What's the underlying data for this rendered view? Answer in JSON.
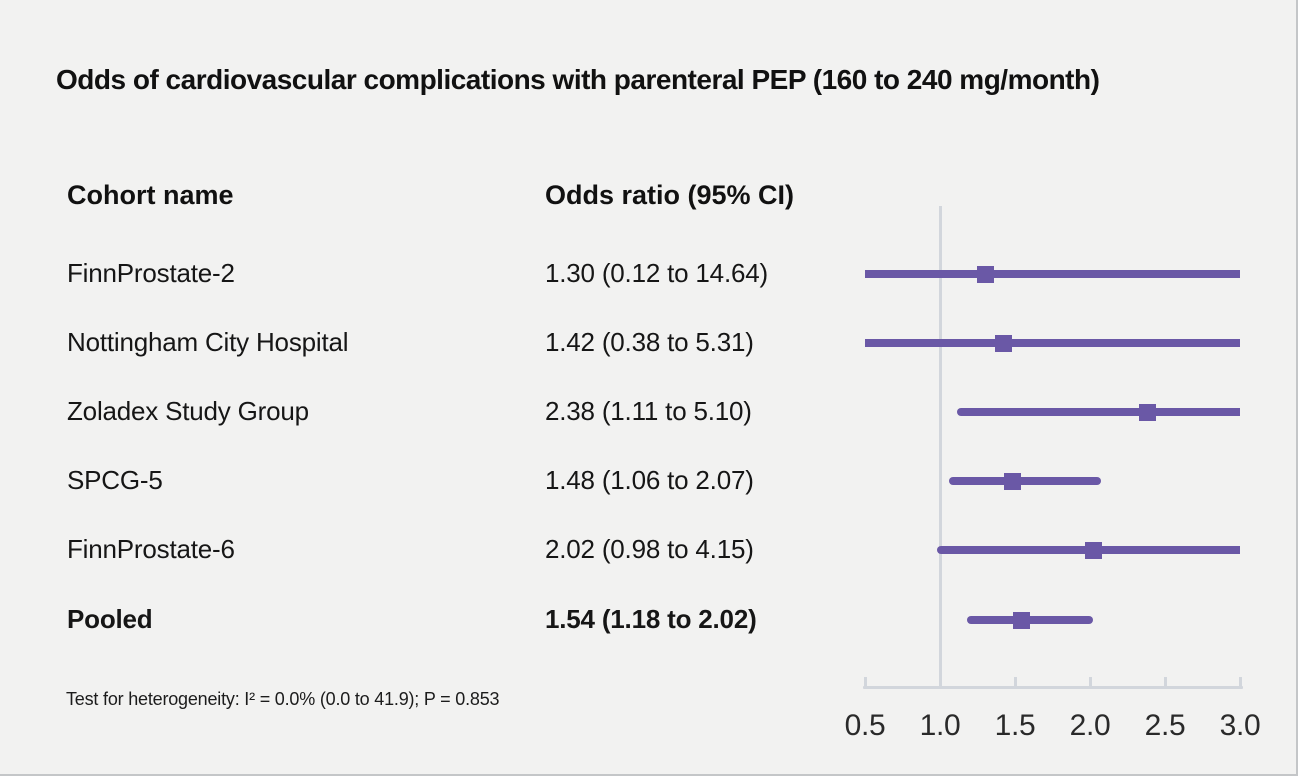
{
  "title": "Odds of cardiovascular complications with parenteral PEP (160 to 240 mg/month)",
  "table": {
    "cohort_header": "Cohort name",
    "or_header": "Odds ratio (95% CI)"
  },
  "footnote": "Test for heterogeneity: I² = 0.0% (0.0 to 41.9); P = 0.853",
  "chart_data": {
    "type": "forest",
    "title": "Odds of cardiovascular complications with parenteral PEP (160 to 240 mg/month)",
    "xlabel": "Odds ratio",
    "axis": {
      "min": 0.5,
      "max": 3.0,
      "tick_values": [
        0.5,
        1.0,
        1.5,
        2.0,
        2.5,
        3.0
      ],
      "tick_labels": [
        "0.5",
        "1.0",
        "1.5",
        "2.0",
        "2.5",
        "3.0"
      ],
      "reference_line": 1.0,
      "grid": false
    },
    "rows": [
      {
        "cohort": "FinnProstate-2",
        "or": 1.3,
        "ci_low": 0.12,
        "ci_high": 14.64,
        "or_text": "1.30 (0.12 to 14.64)",
        "pooled": false
      },
      {
        "cohort": "Nottingham City Hospital",
        "or": 1.42,
        "ci_low": 0.38,
        "ci_high": 5.31,
        "or_text": "1.42 (0.38 to 5.31)",
        "pooled": false
      },
      {
        "cohort": "Zoladex Study Group",
        "or": 2.38,
        "ci_low": 1.11,
        "ci_high": 5.1,
        "or_text": "2.38 (1.11 to 5.10)",
        "pooled": false
      },
      {
        "cohort": "SPCG-5",
        "or": 1.48,
        "ci_low": 1.06,
        "ci_high": 2.07,
        "or_text": "1.48 (1.06 to 2.07)",
        "pooled": false
      },
      {
        "cohort": "FinnProstate-6",
        "or": 2.02,
        "ci_low": 0.98,
        "ci_high": 4.15,
        "or_text": "2.02 (0.98 to 4.15)",
        "pooled": false
      },
      {
        "cohort": "Pooled",
        "or": 1.54,
        "ci_low": 1.18,
        "ci_high": 2.02,
        "or_text": "1.54 (1.18 to 2.02)",
        "pooled": true
      }
    ],
    "heterogeneity_note": "Test for heterogeneity: I² = 0.0% (0.0 to 41.9); P = 0.853",
    "colors": {
      "marker": "#6a58a6",
      "axis_line": "#d2d6dc",
      "text": "#161616",
      "background": "#f2f2f1"
    }
  }
}
